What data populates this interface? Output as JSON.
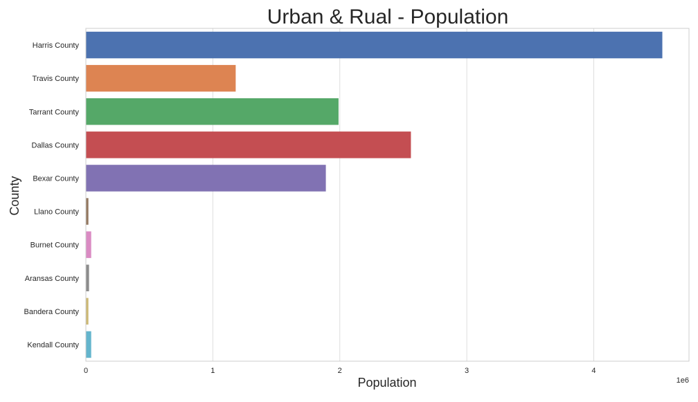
{
  "chart_data": {
    "type": "bar",
    "orientation": "horizontal",
    "title": "Urban & Rual - Population",
    "xlabel": "Population",
    "ylabel": "County",
    "x_offset_label": "1e6",
    "xlim": [
      0,
      4750000
    ],
    "xticks": [
      0,
      1000000,
      2000000,
      3000000,
      4000000
    ],
    "xtick_labels": [
      "0",
      "1",
      "2",
      "3",
      "4"
    ],
    "grid": true,
    "categories": [
      "Harris County",
      "Travis County",
      "Tarrant County",
      "Dallas County",
      "Bexar County",
      "Llano County",
      "Burnet County",
      "Aransas County",
      "Bandera County",
      "Kendall County"
    ],
    "values": [
      4540000,
      1180000,
      1990000,
      2560000,
      1890000,
      20000,
      42000,
      25000,
      20000,
      42000
    ],
    "colors": [
      "#4c72b0",
      "#dd8452",
      "#55a868",
      "#c44e52",
      "#8172b3",
      "#937860",
      "#da8bc3",
      "#8c8c8c",
      "#ccb974",
      "#64b5cd"
    ]
  }
}
